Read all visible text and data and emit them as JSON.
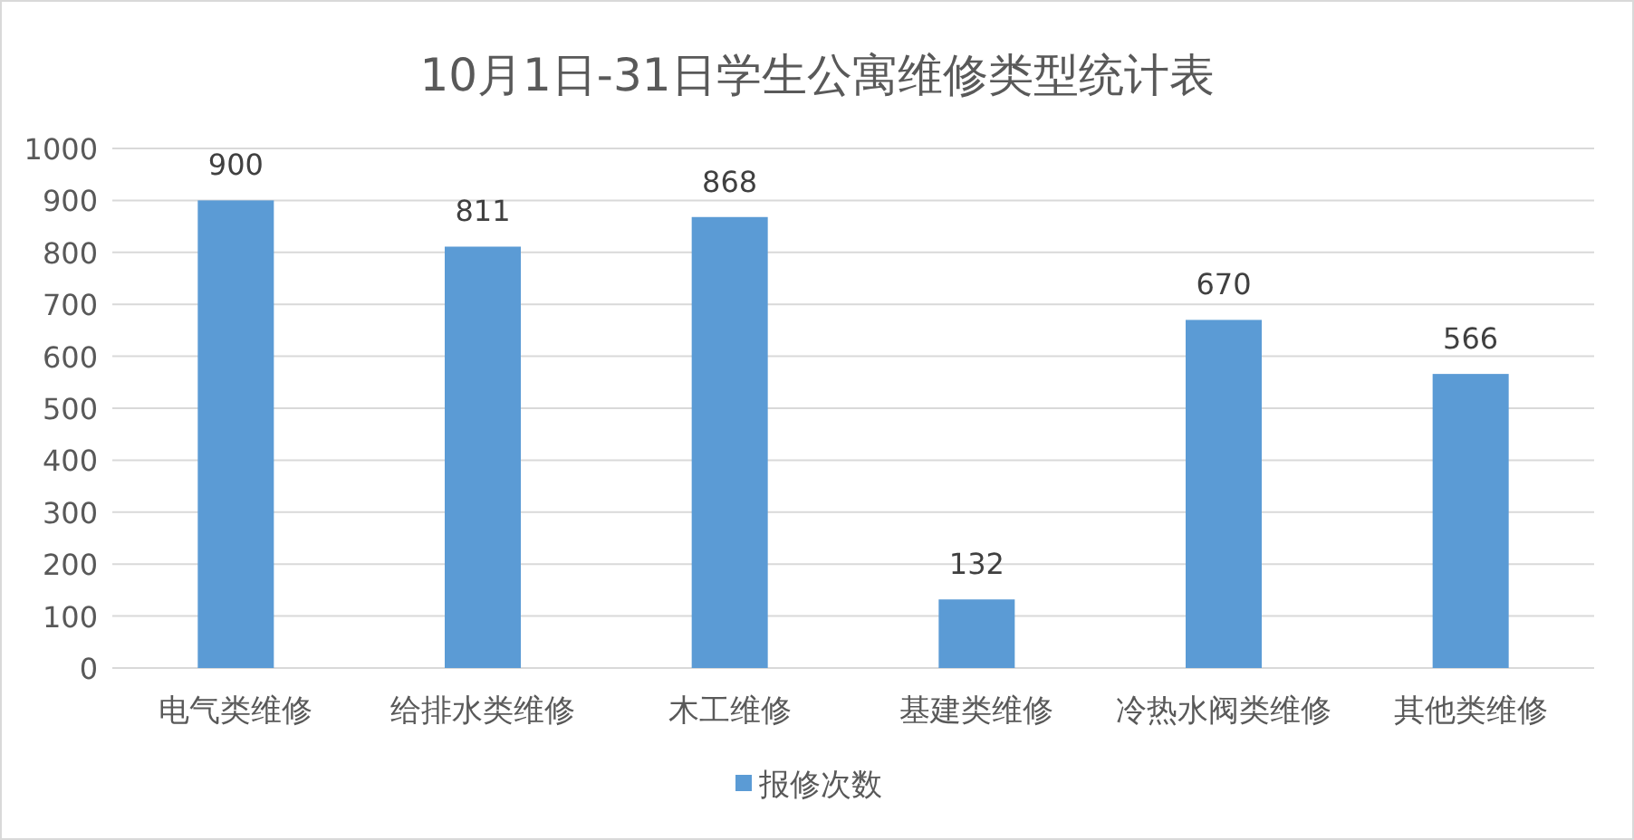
{
  "chart_data": {
    "type": "bar",
    "title": "10月1日-31日学生公寓维修类型统计表",
    "categories": [
      "电气类维修",
      "给排水类维修",
      "木工维修",
      "基建类维修",
      "冷热水阀类维修",
      "其他类维修"
    ],
    "series": [
      {
        "name": "报修次数",
        "color": "#5b9bd5",
        "values": [
          900,
          811,
          868,
          132,
          670,
          566
        ]
      }
    ],
    "ylim": [
      0,
      1000
    ],
    "yticks": [
      0,
      100,
      200,
      300,
      400,
      500,
      600,
      700,
      800,
      900,
      1000
    ],
    "grid": "y",
    "legend": "bottom",
    "data_labels": true
  }
}
